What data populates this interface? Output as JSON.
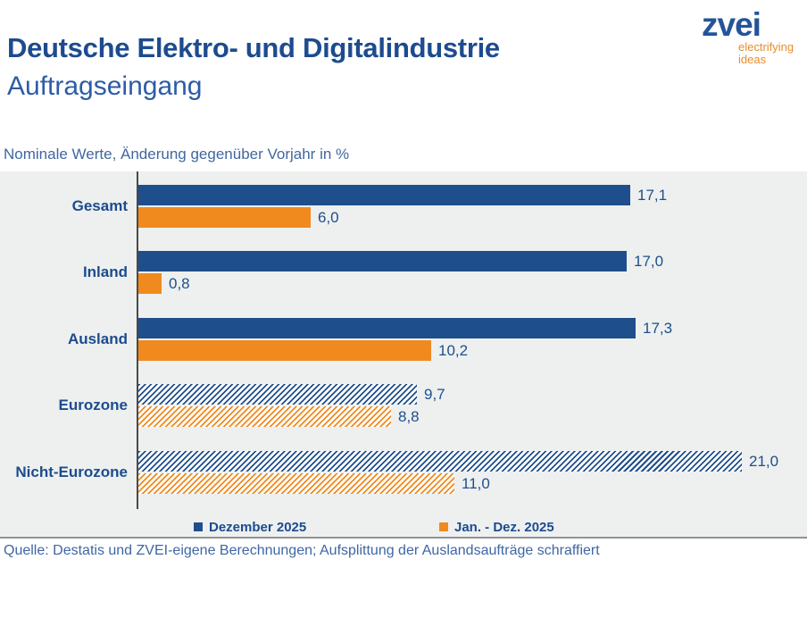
{
  "header": {
    "title": "Deutsche Elektro- und Digitalindustrie",
    "subtitle": "Auftragseingang",
    "logo": {
      "wordmark": "zvei",
      "tagline_line1": "electrifying",
      "tagline_line2": "ideas"
    }
  },
  "note": "Nominale Werte, Änderung gegenüber Vorjahr in %",
  "chart_data": {
    "type": "bar",
    "orientation": "horizontal",
    "title": "Deutsche Elektro- und Digitalindustrie – Auftragseingang",
    "subtitle": "Nominale Werte, Änderung gegenüber Vorjahr in %",
    "categories": [
      "Gesamt",
      "Inland",
      "Ausland",
      "Eurozone",
      "Nicht-Eurozone"
    ],
    "hatched_categories": [
      "Eurozone",
      "Nicht-Eurozone"
    ],
    "series": [
      {
        "name": "Dezember 2025",
        "color": "#1f4e8c",
        "values": [
          17.1,
          17.0,
          17.3,
          9.7,
          21.0
        ],
        "value_labels": [
          "17,1",
          "17,0",
          "17,3",
          "9,7",
          "21,0"
        ]
      },
      {
        "name": "Jan. - Dez. 2025",
        "color": "#f08a1e",
        "values": [
          6.0,
          0.8,
          10.2,
          8.8,
          11.0
        ],
        "value_labels": [
          "6,0",
          "0,8",
          "10,2",
          "8,8",
          "11,0"
        ]
      }
    ],
    "x_axis": {
      "min": 0,
      "implied_max": 23.3,
      "gridlines": false,
      "ticks_visible": false
    },
    "legend_position": "bottom",
    "plot_background": "#edf0ef"
  },
  "legend": {
    "items": [
      {
        "label": "Dezember 2025",
        "color": "#1f4e8c"
      },
      {
        "label": "Jan. - Dez. 2025",
        "color": "#f08a1e"
      }
    ]
  },
  "footer": {
    "source": "Quelle: Destatis und ZVEI-eigene Berechnungen; Aufsplittung der Auslandsaufträge schraffiert"
  },
  "colors": {
    "title_blue": "#1d4b8e",
    "accent_blue": "#1f4e8c",
    "accent_orange": "#f08a1e",
    "logo_tagline_orange": "#e88d2e",
    "note_blue": "#41679f",
    "plot_gray": "#edf0ef"
  }
}
